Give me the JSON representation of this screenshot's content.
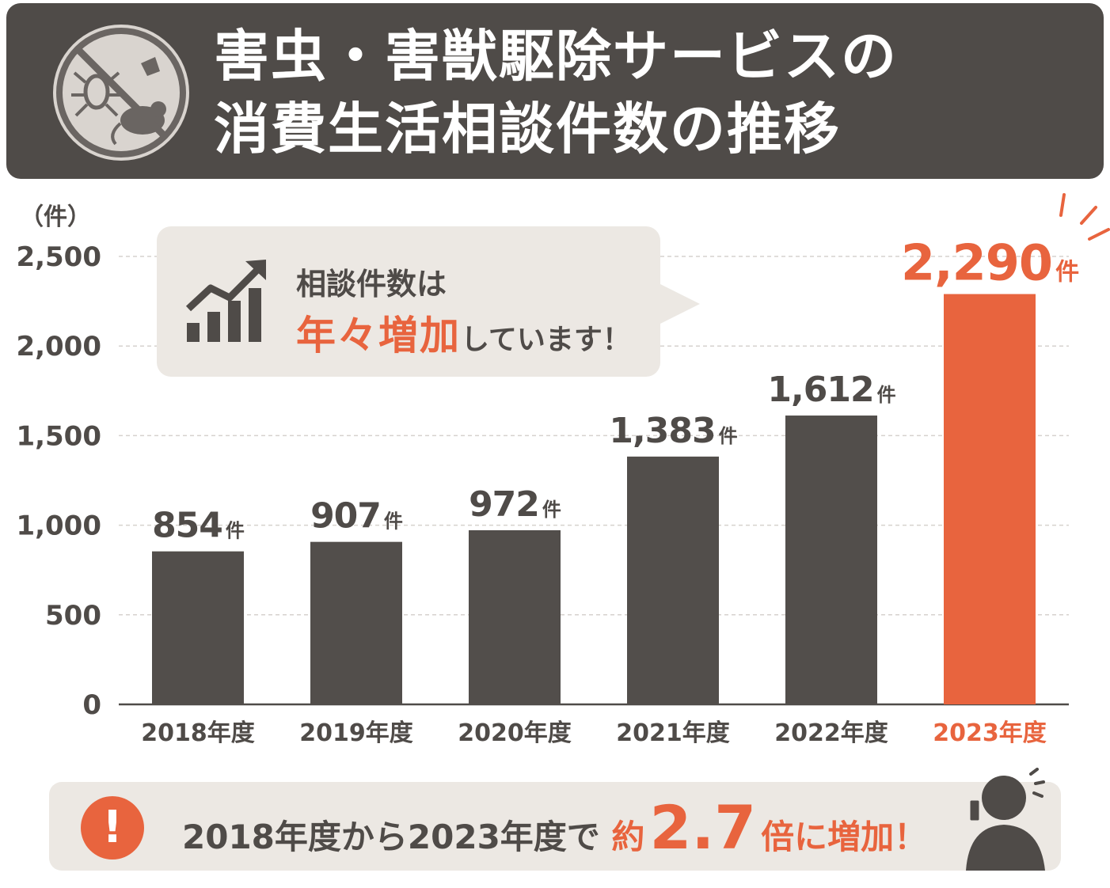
{
  "header": {
    "title_line1": "害虫・害獣駆除サービスの",
    "title_line2": "消費生活相談件数の推移",
    "icon": "no-pests-icon"
  },
  "callout": {
    "line1": "相談件数は",
    "highlight": "年々増加",
    "rest": "しています！",
    "icon": "growth-chart-icon"
  },
  "summary": {
    "part1": "2018年度から2023年度で",
    "prefix": "約",
    "multiplier": "2.7",
    "suffix": "倍に増加！",
    "warning_symbol": "!",
    "icon": "surprised-person-phone-icon"
  },
  "chart_data": {
    "type": "bar",
    "unit_label": "（件）",
    "categories": [
      "2018年度",
      "2019年度",
      "2020年度",
      "2021年度",
      "2022年度",
      "2023年度"
    ],
    "values": [
      854,
      907,
      972,
      1383,
      1612,
      2290
    ],
    "value_labels": [
      "854",
      "907",
      "972",
      "1,383",
      "1,612",
      "2,290"
    ],
    "value_suffix": "件",
    "ylim": [
      0,
      2500
    ],
    "yticks": [
      0,
      500,
      1000,
      1500,
      2000,
      2500
    ],
    "ytick_labels": [
      "0",
      "500",
      "1,000",
      "1,500",
      "2,000",
      "2,500"
    ],
    "grid": true,
    "highlight_index": 5,
    "colors": {
      "bar": "#524e4b",
      "highlight": "#e8643e",
      "text": "#4f4b48"
    }
  }
}
